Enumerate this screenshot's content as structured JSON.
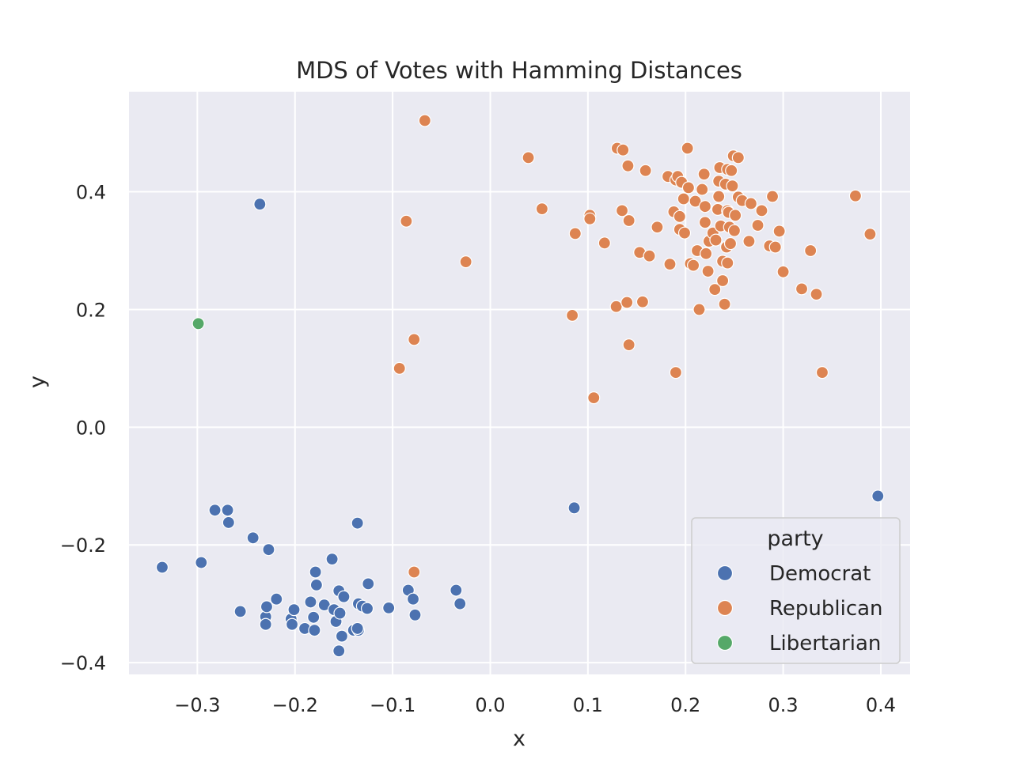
{
  "chart_data": {
    "type": "scatter",
    "title": "MDS of Votes with Hamming Distances",
    "xlabel": "x",
    "ylabel": "y",
    "xlim": [
      -0.37,
      0.43
    ],
    "ylim": [
      -0.42,
      0.57
    ],
    "x_ticks": [
      -0.3,
      -0.2,
      -0.1,
      0.0,
      0.1,
      0.2,
      0.3,
      0.4
    ],
    "y_ticks": [
      -0.4,
      -0.2,
      0.0,
      0.2,
      0.4
    ],
    "x_tick_labels": [
      "−0.3",
      "−0.2",
      "−0.1",
      "0.0",
      "0.1",
      "0.2",
      "0.3",
      "0.4"
    ],
    "y_tick_labels": [
      "−0.4",
      "−0.2",
      "0.0",
      "0.2",
      "0.4"
    ],
    "grid": true,
    "legend": {
      "title": "party",
      "placement": "lower-right"
    },
    "series": [
      {
        "name": "Democrat",
        "color": "#4c72b0",
        "points": [
          [
            -0.236,
            0.379
          ],
          [
            -0.336,
            -0.238
          ],
          [
            -0.296,
            -0.23
          ],
          [
            -0.282,
            -0.141
          ],
          [
            -0.269,
            -0.141
          ],
          [
            -0.268,
            -0.162
          ],
          [
            -0.243,
            -0.188
          ],
          [
            -0.256,
            -0.313
          ],
          [
            -0.23,
            -0.322
          ],
          [
            -0.229,
            -0.305
          ],
          [
            -0.23,
            -0.335
          ],
          [
            -0.227,
            -0.208
          ],
          [
            -0.219,
            -0.292
          ],
          [
            -0.204,
            -0.326
          ],
          [
            -0.201,
            -0.31
          ],
          [
            -0.203,
            -0.335
          ],
          [
            -0.19,
            -0.342
          ],
          [
            -0.184,
            -0.297
          ],
          [
            -0.18,
            -0.345
          ],
          [
            -0.181,
            -0.323
          ],
          [
            -0.179,
            -0.246
          ],
          [
            -0.178,
            -0.268
          ],
          [
            -0.17,
            -0.302
          ],
          [
            -0.162,
            -0.224
          ],
          [
            -0.16,
            -0.31
          ],
          [
            -0.158,
            -0.33
          ],
          [
            -0.155,
            -0.278
          ],
          [
            -0.154,
            -0.316
          ],
          [
            -0.155,
            -0.38
          ],
          [
            -0.152,
            -0.355
          ],
          [
            -0.15,
            -0.288
          ],
          [
            -0.14,
            -0.345
          ],
          [
            -0.135,
            -0.345
          ],
          [
            -0.136,
            -0.342
          ],
          [
            -0.135,
            -0.3
          ],
          [
            -0.136,
            -0.163
          ],
          [
            -0.131,
            -0.304
          ],
          [
            -0.126,
            -0.308
          ],
          [
            -0.125,
            -0.266
          ],
          [
            -0.104,
            -0.307
          ],
          [
            -0.084,
            -0.277
          ],
          [
            -0.079,
            -0.292
          ],
          [
            -0.077,
            -0.319
          ],
          [
            -0.035,
            -0.277
          ],
          [
            -0.031,
            -0.3
          ],
          [
            0.086,
            -0.137
          ],
          [
            0.397,
            -0.117
          ]
        ]
      },
      {
        "name": "Republican",
        "color": "#dd8452",
        "points": [
          [
            -0.067,
            0.521
          ],
          [
            -0.086,
            0.35
          ],
          [
            -0.025,
            0.281
          ],
          [
            -0.078,
            0.149
          ],
          [
            -0.093,
            0.1
          ],
          [
            -0.078,
            -0.246
          ],
          [
            0.039,
            0.458
          ],
          [
            0.053,
            0.371
          ],
          [
            0.084,
            0.19
          ],
          [
            0.087,
            0.329
          ],
          [
            0.102,
            0.36
          ],
          [
            0.102,
            0.354
          ],
          [
            0.106,
            0.05
          ],
          [
            0.117,
            0.313
          ],
          [
            0.129,
            0.205
          ],
          [
            0.13,
            0.474
          ],
          [
            0.136,
            0.471
          ],
          [
            0.135,
            0.368
          ],
          [
            0.141,
            0.444
          ],
          [
            0.14,
            0.212
          ],
          [
            0.142,
            0.351
          ],
          [
            0.142,
            0.14
          ],
          [
            0.153,
            0.297
          ],
          [
            0.156,
            0.213
          ],
          [
            0.159,
            0.436
          ],
          [
            0.163,
            0.291
          ],
          [
            0.171,
            0.34
          ],
          [
            0.182,
            0.426
          ],
          [
            0.184,
            0.277
          ],
          [
            0.188,
            0.366
          ],
          [
            0.19,
            0.093
          ],
          [
            0.19,
            0.42
          ],
          [
            0.192,
            0.426
          ],
          [
            0.194,
            0.358
          ],
          [
            0.194,
            0.336
          ],
          [
            0.196,
            0.416
          ],
          [
            0.198,
            0.388
          ],
          [
            0.199,
            0.33
          ],
          [
            0.202,
            0.474
          ],
          [
            0.203,
            0.407
          ],
          [
            0.205,
            0.278
          ],
          [
            0.208,
            0.275
          ],
          [
            0.21,
            0.384
          ],
          [
            0.212,
            0.3
          ],
          [
            0.214,
            0.2
          ],
          [
            0.217,
            0.404
          ],
          [
            0.219,
            0.43
          ],
          [
            0.22,
            0.348
          ],
          [
            0.22,
            0.375
          ],
          [
            0.221,
            0.295
          ],
          [
            0.223,
            0.265
          ],
          [
            0.224,
            0.316
          ],
          [
            0.228,
            0.33
          ],
          [
            0.23,
            0.234
          ],
          [
            0.231,
            0.318
          ],
          [
            0.233,
            0.37
          ],
          [
            0.234,
            0.418
          ],
          [
            0.234,
            0.392
          ],
          [
            0.235,
            0.441
          ],
          [
            0.236,
            0.342
          ],
          [
            0.238,
            0.249
          ],
          [
            0.238,
            0.282
          ],
          [
            0.24,
            0.209
          ],
          [
            0.241,
            0.413
          ],
          [
            0.242,
            0.306
          ],
          [
            0.243,
            0.368
          ],
          [
            0.243,
            0.279
          ],
          [
            0.243,
            0.438
          ],
          [
            0.244,
            0.365
          ],
          [
            0.245,
            0.34
          ],
          [
            0.246,
            0.312
          ],
          [
            0.247,
            0.436
          ],
          [
            0.248,
            0.41
          ],
          [
            0.249,
            0.461
          ],
          [
            0.25,
            0.334
          ],
          [
            0.251,
            0.36
          ],
          [
            0.254,
            0.458
          ],
          [
            0.254,
            0.391
          ],
          [
            0.258,
            0.385
          ],
          [
            0.265,
            0.316
          ],
          [
            0.267,
            0.38
          ],
          [
            0.274,
            0.343
          ],
          [
            0.278,
            0.368
          ],
          [
            0.286,
            0.308
          ],
          [
            0.289,
            0.392
          ],
          [
            0.292,
            0.306
          ],
          [
            0.296,
            0.333
          ],
          [
            0.3,
            0.264
          ],
          [
            0.319,
            0.235
          ],
          [
            0.328,
            0.3
          ],
          [
            0.334,
            0.226
          ],
          [
            0.34,
            0.093
          ],
          [
            0.374,
            0.393
          ],
          [
            0.389,
            0.328
          ]
        ]
      },
      {
        "name": "Libertarian",
        "color": "#55a868",
        "points": [
          [
            -0.299,
            0.176
          ]
        ]
      }
    ]
  }
}
